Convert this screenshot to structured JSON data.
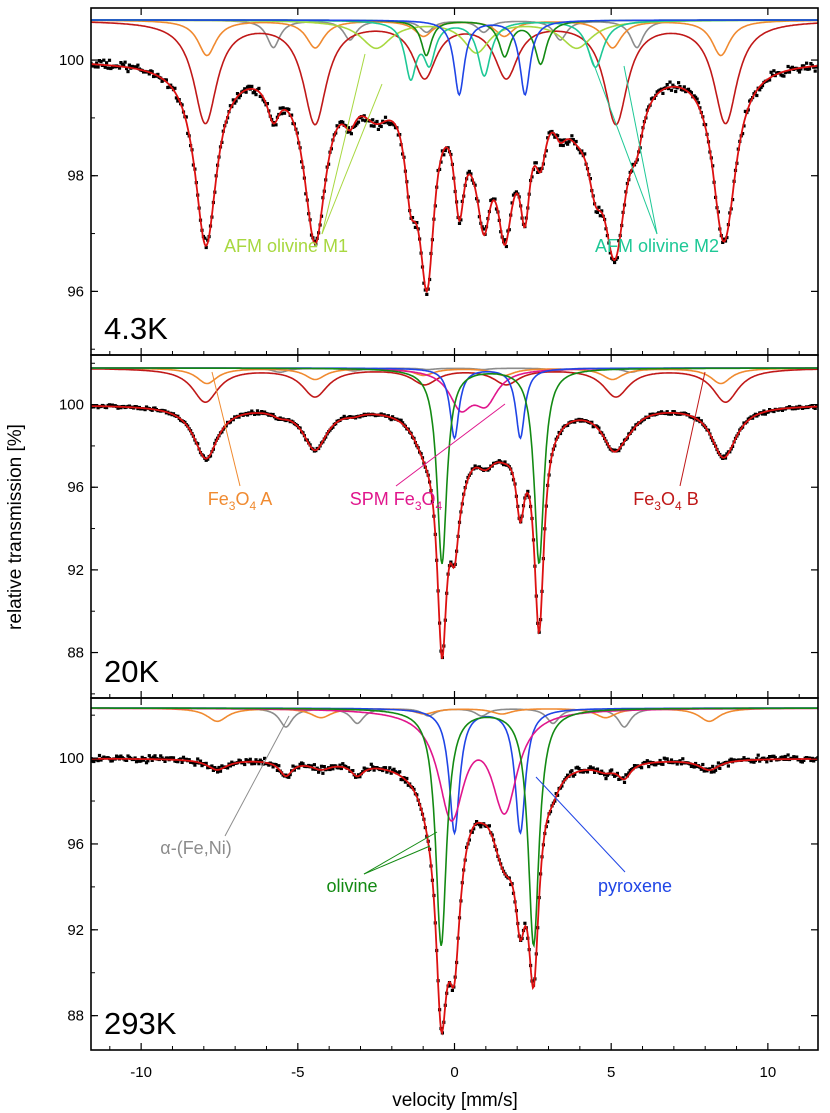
{
  "chart_data": {
    "type": "line",
    "xlabel": "velocity [mm/s]",
    "ylabel": "relative transmission [%]",
    "xlim": [
      -11.6,
      11.6
    ],
    "xticks": [
      -10,
      -5,
      0,
      5,
      10
    ],
    "colors": {
      "data": "#000000",
      "fit": "#dd1111",
      "fe3o4_a": "#f08a30",
      "fe3o4_b": "#c01818",
      "spm_fe3o4": "#e0168c",
      "olivine": "#138a13",
      "pyroxene": "#1f45e6",
      "fe_ni": "#8c8c8c",
      "afm_m1": "#a8d840",
      "afm_m2": "#1ec896"
    },
    "panels": [
      {
        "temperature": "4.3K",
        "ylim": [
          94.9,
          100.9
        ],
        "yticks": [
          "100",
          "98",
          "96"
        ],
        "ytick_values": [
          100,
          98,
          96
        ],
        "baseline": 100.0,
        "minimum": 96.0,
        "annotations": [
          {
            "key": "afm_m1",
            "text": "AFM olivine M1"
          },
          {
            "key": "afm_m2",
            "text": "AFM olivine M2"
          }
        ]
      },
      {
        "temperature": "20K",
        "ylim": [
          85.8,
          102.4
        ],
        "yticks": [
          "100",
          "96",
          "92",
          "88"
        ],
        "ytick_values": [
          100,
          96,
          92,
          88
        ],
        "baseline": 100.0,
        "minimum": 87.7,
        "annotations": [
          {
            "key": "fe3o4_a",
            "main": "Fe",
            "sub": "3",
            "main2": "O",
            "sub2": "4",
            "tail": " A"
          },
          {
            "key": "spm_fe3o4",
            "main": "SPM Fe",
            "sub": "3",
            "main2": "O",
            "sub2": "4",
            "tail": ""
          },
          {
            "key": "fe3o4_b",
            "main": "Fe",
            "sub": "3",
            "main2": "O",
            "sub2": "4",
            "tail": " B"
          }
        ]
      },
      {
        "temperature": "293K",
        "ylim": [
          86.4,
          102.8
        ],
        "yticks": [
          "100",
          "96",
          "92",
          "88"
        ],
        "ytick_values": [
          100,
          96,
          92,
          88
        ],
        "baseline": 100.0,
        "minimum": 87.2,
        "annotations": [
          {
            "key": "fe_ni",
            "text": "α-(Fe,Ni)"
          },
          {
            "key": "olivine",
            "text": "olivine"
          },
          {
            "key": "pyroxene",
            "text": "pyroxene"
          }
        ]
      }
    ]
  }
}
